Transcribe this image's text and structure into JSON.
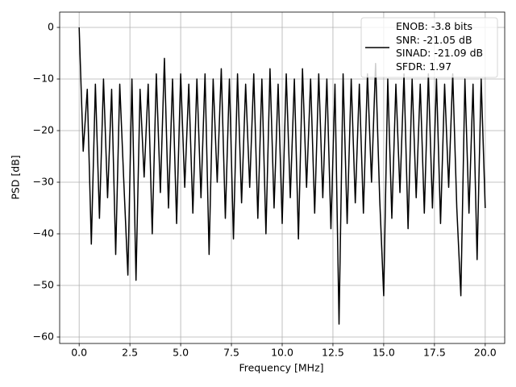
{
  "chart_data": {
    "type": "line",
    "xlabel": "Frequency [MHz]",
    "ylabel": "PSD [dB]",
    "x": [
      0,
      0.2,
      0.4,
      0.6,
      0.8,
      1.0,
      1.2,
      1.4,
      1.6,
      1.8,
      2.0,
      2.2,
      2.4,
      2.6,
      2.8,
      3.0,
      3.2,
      3.4,
      3.6,
      3.8,
      4.0,
      4.2,
      4.4,
      4.6,
      4.8,
      5.0,
      5.2,
      5.4,
      5.6,
      5.8,
      6.0,
      6.2,
      6.4,
      6.6,
      6.8,
      7.0,
      7.2,
      7.4,
      7.6,
      7.8,
      8.0,
      8.2,
      8.4,
      8.6,
      8.8,
      9.0,
      9.2,
      9.4,
      9.6,
      9.8,
      10.0,
      10.2,
      10.4,
      10.6,
      10.8,
      11.0,
      11.2,
      11.4,
      11.6,
      11.8,
      12.0,
      12.2,
      12.4,
      12.6,
      12.8,
      13.0,
      13.2,
      13.4,
      13.6,
      13.8,
      14.0,
      14.2,
      14.4,
      14.6,
      14.8,
      15.0,
      15.2,
      15.4,
      15.6,
      15.8,
      16.0,
      16.2,
      16.4,
      16.6,
      16.8,
      17.0,
      17.2,
      17.4,
      17.6,
      17.8,
      18.0,
      18.2,
      18.4,
      18.6,
      18.8,
      19.0,
      19.2,
      19.4,
      19.6,
      19.8,
      20.0
    ],
    "series": [
      {
        "name": "ENOB: -3.8 bits\nSNR: -21.05 dB\nSINAD: -21.09 dB\nSFDR: 1.97",
        "color": "#000000",
        "values": [
          0,
          -24,
          -12,
          -42,
          -11,
          -37,
          -10,
          -33,
          -12,
          -44,
          -11,
          -30,
          -48,
          -10,
          -49,
          -12,
          -29,
          -11,
          -40,
          -9,
          -32,
          -6,
          -35,
          -10,
          -38,
          -9,
          -31,
          -11,
          -36,
          -10,
          -33,
          -9,
          -44,
          -10,
          -30,
          -8,
          -37,
          -10,
          -41,
          -9,
          -34,
          -11,
          -31,
          -9,
          -37,
          -10,
          -40,
          -8,
          -35,
          -11,
          -38,
          -9,
          -33,
          -10,
          -41,
          -8,
          -31,
          -10,
          -36,
          -9,
          -33,
          -10,
          -39,
          -11,
          -57.5,
          -9,
          -38,
          -10,
          -34,
          -11,
          -36,
          -9,
          -30,
          -7,
          -33,
          -52,
          -10,
          -37,
          -11,
          -32,
          -9,
          -39,
          -10,
          -33,
          -11,
          -36,
          -9,
          -35,
          -10,
          -38,
          -11,
          -31,
          -9,
          -35,
          -52,
          -10,
          -36,
          -11,
          -45,
          -10,
          -35
        ]
      }
    ],
    "xlim": [
      -0.96,
      20.96
    ],
    "xticks": [
      {
        "value": 0,
        "label": "0.0"
      },
      2.5,
      {
        "value": 5,
        "label": "5.0"
      },
      7.5,
      {
        "value": 10,
        "label": "10.0"
      },
      12.5,
      {
        "value": 15,
        "label": "15.0"
      },
      17.5,
      {
        "value": 20,
        "label": "20.0"
      }
    ],
    "ylim": [
      -61.25,
      2.97
    ],
    "yticks": [
      {
        "value": -60,
        "label": "−60"
      },
      {
        "value": -50,
        "label": "−50"
      },
      {
        "value": -40,
        "label": "−40"
      },
      {
        "value": -30,
        "label": "−30"
      },
      {
        "value": -20,
        "label": "−20"
      },
      {
        "value": -10,
        "label": "−10"
      },
      0
    ],
    "grid": true,
    "legend": "upper right"
  }
}
